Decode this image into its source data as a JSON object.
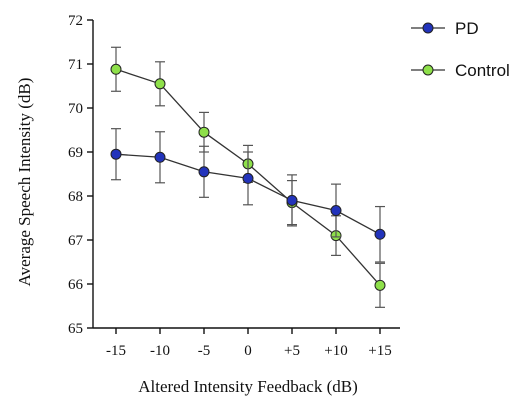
{
  "chart_data": {
    "type": "line",
    "xlabel": "Altered Intensity Feedback (dB)",
    "ylabel": "Average Speech Intensity (dB)",
    "categories": [
      "-15",
      "-10",
      "-5",
      "0",
      "+5",
      "+10",
      "+15"
    ],
    "ylim": [
      65,
      72
    ],
    "yticks": [
      "65",
      "66",
      "67",
      "68",
      "69",
      "70",
      "71",
      "72"
    ],
    "grid": false,
    "legend_position": "top-right, outside plot",
    "series": [
      {
        "name": "PD",
        "color": "#2233bb",
        "values": [
          68.95,
          68.88,
          68.55,
          68.4,
          67.9,
          67.67,
          67.13
        ],
        "error": [
          0.58,
          0.58,
          0.58,
          0.6,
          0.58,
          0.6,
          0.63
        ]
      },
      {
        "name": "Control",
        "color": "#8ee04a",
        "values": [
          70.88,
          70.55,
          69.45,
          68.73,
          67.85,
          67.1,
          65.97
        ],
        "error": [
          0.5,
          0.5,
          0.45,
          0.42,
          0.5,
          0.45,
          0.5
        ]
      }
    ]
  }
}
